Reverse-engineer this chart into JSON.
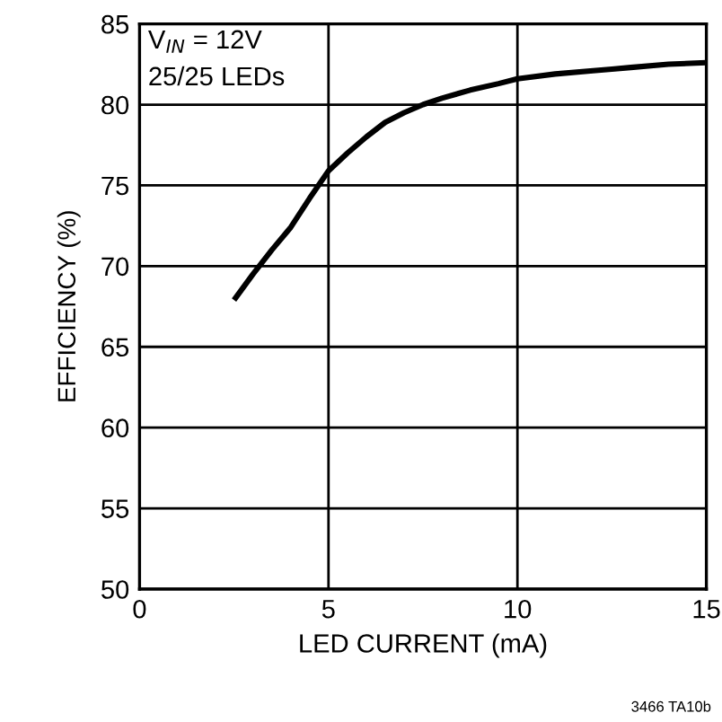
{
  "chart_data": {
    "type": "line",
    "xlabel": "LED CURRENT (mA)",
    "ylabel": "EFFICIENCY (%)",
    "annotations": [
      "V$_{IN}$ = 12V",
      "25/25 LEDs",
      "3466 TA10b"
    ],
    "series": [
      {
        "color": "#000000",
        "x": [
          2.5,
          3,
          3.5,
          4,
          4.5,
          5,
          5.5,
          6,
          6.5,
          7,
          7.5,
          8,
          8.75,
          9.5,
          10,
          11,
          12,
          12.5,
          13,
          14,
          15
        ],
        "values": [
          67.9,
          69.5,
          71.0,
          72.4,
          74.2,
          75.9,
          77.0,
          78.0,
          78.9,
          79.5,
          80.0,
          80.4,
          80.9,
          81.3,
          81.6,
          81.9,
          82.1,
          82.2,
          82.3,
          82.5,
          82.6
        ]
      }
    ],
    "xlim": [
      0,
      15
    ],
    "xticks": [
      0,
      5,
      10,
      15
    ],
    "ylim": [
      50,
      85
    ],
    "yticks": [
      50,
      55,
      60,
      65,
      70,
      75,
      80,
      85
    ],
    "grid": true,
    "marker": "none",
    "line_style": "solid"
  }
}
